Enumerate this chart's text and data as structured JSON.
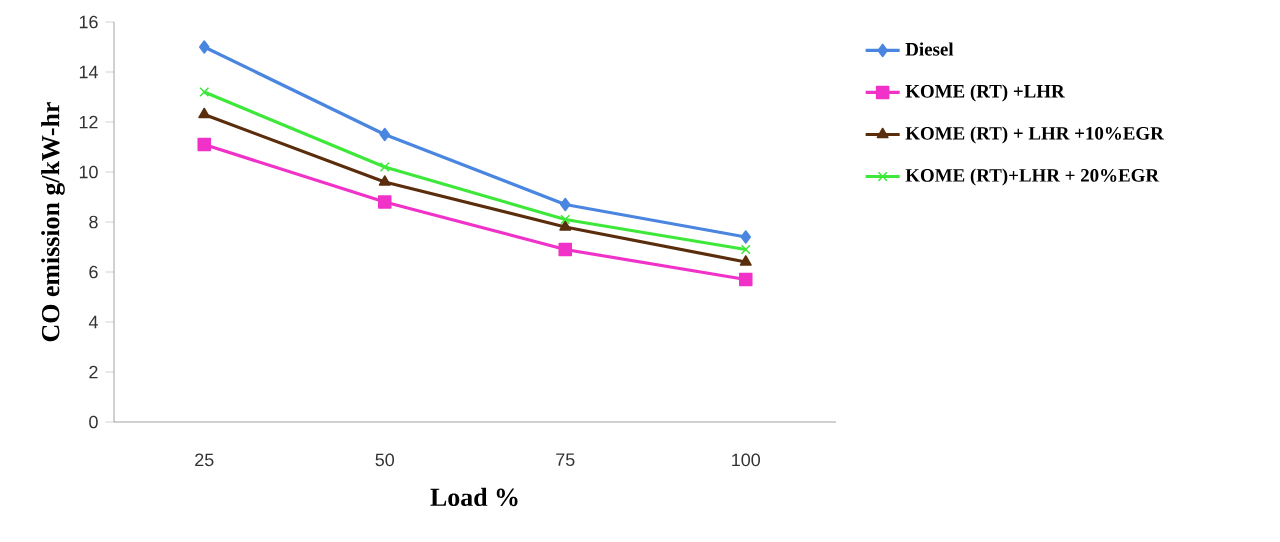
{
  "chart_data": {
    "type": "line",
    "xlabel": "Load %",
    "ylabel": "CO emission g/kW-hr",
    "categories": [
      "25",
      "50",
      "75",
      "100"
    ],
    "series": [
      {
        "name": "Diesel",
        "color": "#4a86e0",
        "marker": "diamond",
        "values": [
          15.0,
          11.5,
          8.7,
          7.4
        ]
      },
      {
        "name": "KOME (RT) +LHR",
        "color": "#f032c8",
        "marker": "square",
        "values": [
          11.1,
          8.8,
          6.9,
          5.7
        ]
      },
      {
        "name": "KOME (RT) + LHR +10%EGR",
        "color": "#5a2d0c",
        "marker": "triangle",
        "values": [
          12.3,
          9.6,
          7.8,
          6.4
        ]
      },
      {
        "name": "KOME (RT)+LHR + 20%EGR",
        "color": "#3ee83a",
        "marker": "cross",
        "values": [
          13.2,
          10.2,
          8.1,
          6.9
        ]
      }
    ],
    "ylim": [
      0,
      16
    ],
    "yticks": [
      0,
      2,
      4,
      6,
      8,
      10,
      12,
      14,
      16
    ],
    "grid": false,
    "legend": "right",
    "line_style": "solid"
  }
}
